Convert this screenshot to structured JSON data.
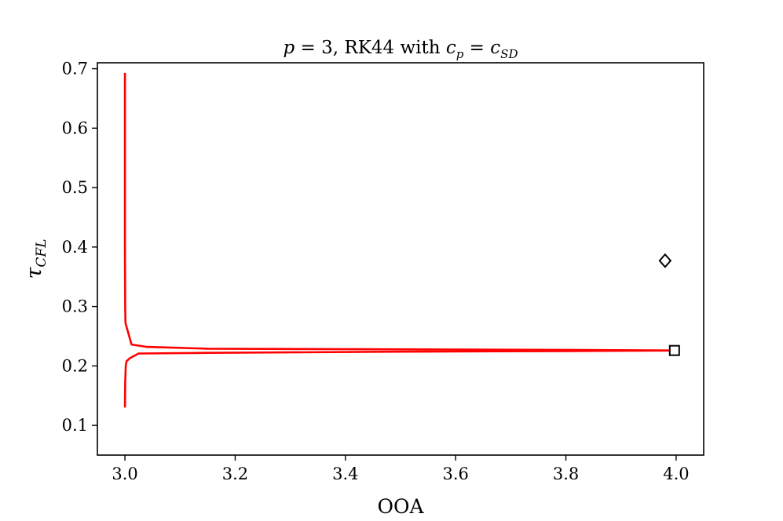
{
  "chart_data": {
    "type": "line",
    "title": {
      "p_symbol": "p",
      "eq1": " = 3, RK44 with ",
      "c_symbol": "c",
      "sub_p": "p",
      "eq2": " = ",
      "c_symbol2": "c",
      "sub_sd": "SD"
    },
    "xlabel": "OOA",
    "ylabel": {
      "symbol": "τ",
      "sub": "CFL"
    },
    "xlim": [
      2.95,
      4.05
    ],
    "ylim": [
      0.05,
      0.71
    ],
    "xticks": [
      3.0,
      3.2,
      3.4,
      3.6,
      3.8,
      4.0
    ],
    "xtick_labels": [
      "3.0",
      "3.2",
      "3.4",
      "3.6",
      "3.8",
      "4.0"
    ],
    "yticks": [
      0.1,
      0.2,
      0.3,
      0.4,
      0.5,
      0.6,
      0.7
    ],
    "ytick_labels": [
      "0.1",
      "0.2",
      "0.3",
      "0.4",
      "0.5",
      "0.6",
      "0.7"
    ],
    "grid": false,
    "series": [
      {
        "color": "#ff0000",
        "x": [
          3.0,
          3.0,
          3.0005,
          3.001,
          3.012,
          3.04,
          3.15,
          3.5,
          3.8,
          4.0,
          3.8,
          3.5,
          3.15,
          3.03,
          3.025,
          3.009,
          3.003,
          3.0015,
          3.0005,
          3.0
        ],
        "y": [
          0.693,
          0.4,
          0.3,
          0.272,
          0.236,
          0.232,
          0.229,
          0.228,
          0.227,
          0.226,
          0.225,
          0.224,
          0.222,
          0.221,
          0.221,
          0.213,
          0.208,
          0.2,
          0.17,
          0.13
        ]
      }
    ],
    "markers": [
      {
        "shape": "diamond",
        "x": 3.98,
        "y": 0.377,
        "color": "#000000"
      },
      {
        "shape": "square",
        "x": 3.997,
        "y": 0.226,
        "color": "#000000"
      }
    ]
  }
}
